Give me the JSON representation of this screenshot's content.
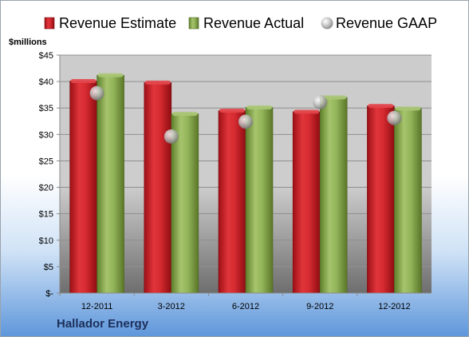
{
  "company": "Hallador Energy",
  "chart_data": {
    "type": "bar",
    "title": "",
    "ylabel": "$millions",
    "xlabel": "",
    "categories": [
      "12-2011",
      "3-2012",
      "6-2012",
      "9-2012",
      "12-2012"
    ],
    "series": [
      {
        "name": "Revenue Estimate",
        "kind": "bar",
        "color": "#d7262e",
        "values": [
          40.1,
          39.8,
          34.5,
          34.3,
          35.4
        ]
      },
      {
        "name": "Revenue Actual",
        "kind": "bar",
        "color": "#93b55a",
        "values": [
          41.2,
          33.9,
          35.1,
          37.0,
          34.9
        ]
      },
      {
        "name": "Revenue GAAP",
        "kind": "marker",
        "color": "#b8b8b8",
        "values": [
          37.8,
          29.6,
          32.4,
          36.1,
          33.1
        ]
      }
    ],
    "ylim": [
      0,
      45
    ],
    "yticks": [
      0,
      5,
      10,
      15,
      20,
      25,
      30,
      35,
      40,
      45
    ],
    "ytick_labels": [
      "$-",
      "$5",
      "$10",
      "$15",
      "$20",
      "$25",
      "$30",
      "$35",
      "$40",
      "$45"
    ],
    "legend_position": "top",
    "grid": true
  }
}
